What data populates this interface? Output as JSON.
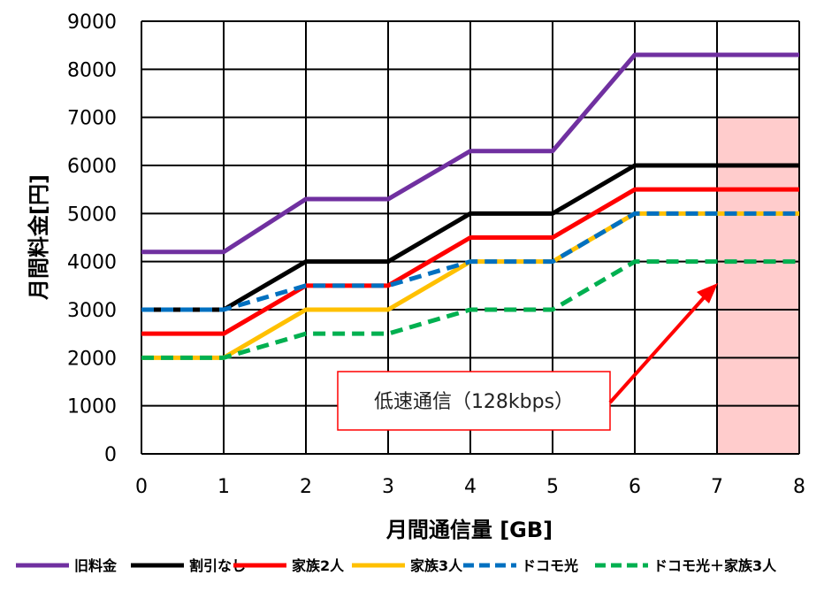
{
  "chart_data": {
    "type": "line",
    "title": "",
    "xlabel": "月間通信量 [GB]",
    "ylabel": "月間料金[円]",
    "xlim": [
      0,
      8
    ],
    "ylim": [
      0,
      9000
    ],
    "x_ticks": [
      "0",
      "1",
      "2",
      "3",
      "4",
      "5",
      "6",
      "7",
      "8"
    ],
    "y_ticks": [
      "0",
      "1000",
      "2000",
      "3000",
      "4000",
      "5000",
      "6000",
      "7000",
      "8000",
      "9000"
    ],
    "grid": true,
    "legend_position": "bottom",
    "x": [
      0,
      1,
      2,
      3,
      4,
      5,
      6,
      7,
      8
    ],
    "series": [
      {
        "name": "旧料金",
        "color": "#7030a0",
        "style": "solid",
        "values": [
          4200,
          4200,
          5300,
          5300,
          6300,
          6300,
          8300,
          8300,
          8300
        ]
      },
      {
        "name": "割引なし",
        "color": "#000000",
        "style": "solid",
        "values": [
          3000,
          3000,
          4000,
          4000,
          5000,
          5000,
          6000,
          6000,
          6000
        ]
      },
      {
        "name": "家族2人",
        "color": "#ff0000",
        "style": "solid",
        "values": [
          2500,
          2500,
          3500,
          3500,
          4500,
          4500,
          5500,
          5500,
          5500
        ]
      },
      {
        "name": "家族3人",
        "color": "#ffc000",
        "style": "solid",
        "values": [
          2000,
          2000,
          3000,
          3000,
          4000,
          4000,
          5000,
          5000,
          5000
        ]
      },
      {
        "name": "ドコモ光",
        "color": "#0070c0",
        "style": "dashed",
        "values": [
          3000,
          3000,
          3500,
          3500,
          4000,
          4000,
          5000,
          5000,
          5000
        ]
      },
      {
        "name": "ドコモ光＋家族3人",
        "color": "#00b050",
        "style": "dashed",
        "values": [
          2000,
          2000,
          2500,
          2500,
          3000,
          3000,
          4000,
          4000,
          4000
        ]
      }
    ],
    "highlight_region": {
      "x_from": 7,
      "x_to": 8,
      "y_from": 0,
      "y_to": 7000,
      "color": "#ffcccc"
    },
    "annotation": {
      "text": "低速通信（128kbps）",
      "arrow_target": {
        "x": 7,
        "y": 3500
      },
      "box_border_color": "#ff0000",
      "arrow_color": "#ff0000"
    }
  }
}
